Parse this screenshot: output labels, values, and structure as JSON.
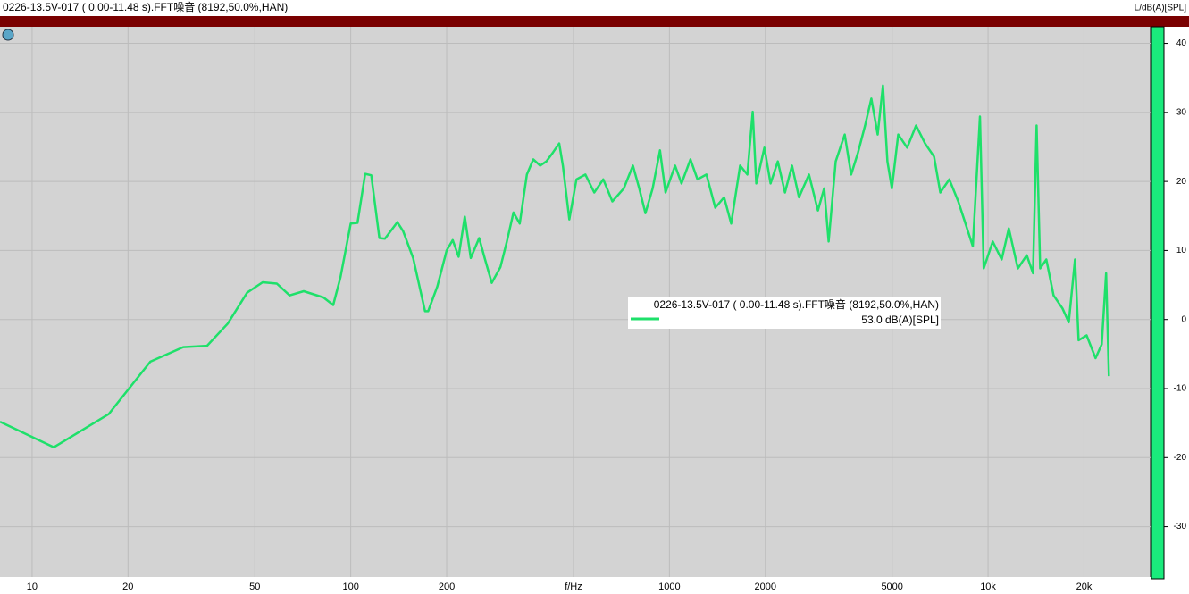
{
  "chart_data": {
    "type": "line",
    "title": "0226-13.5V-017 ( 0.00-11.48 s).FFT噪音 (8192,50.0%,HAN)",
    "y_label": "L/dB(A)[SPL]",
    "legend_value": "53.0 dB(A)[SPL]",
    "x_log": true,
    "grid": true,
    "xlim": [
      7.93,
      32360
    ],
    "ylim": [
      -37.3,
      42.4
    ],
    "xticks": [
      10,
      20,
      50,
      100,
      200,
      {
        "value": 500,
        "label": "f/Hz"
      },
      1000,
      2000,
      5000,
      {
        "value": 10000,
        "label": "10k"
      },
      {
        "value": 20000,
        "label": "20k"
      }
    ],
    "yticks": [
      -30,
      -20,
      -10,
      0,
      10,
      20,
      30,
      40
    ],
    "x": [
      7.93,
      11.7,
      17.4,
      23.5,
      29.8,
      35.4,
      41.1,
      47.3,
      52.9,
      58.6,
      64.3,
      71.2,
      82.1,
      88.1,
      92.8,
      100,
      105,
      111,
      116,
      123,
      128,
      140,
      146,
      157,
      171,
      175,
      187,
      200,
      209,
      218,
      228,
      238,
      253,
      264,
      277,
      295,
      309,
      324,
      339,
      357,
      374,
      393,
      411,
      431,
      451,
      463,
      485,
      511,
      545,
      581,
      620,
      662,
      719,
      768,
      804,
      841,
      886,
      934,
      972,
      1042,
      1091,
      1164,
      1225,
      1307,
      1393,
      1485,
      1563,
      1667,
      1756,
      1825,
      1873,
      1986,
      2077,
      2189,
      2304,
      2425,
      2551,
      2741,
      2924,
      3060,
      3160,
      3326,
      3549,
      3717,
      3908,
      4112,
      4302,
      4503,
      4678,
      4831,
      4991,
      5223,
      5572,
      5943,
      6342,
      6768,
      7082,
      7557,
      8063,
      8497,
      8955,
      9434,
      9692,
      10340,
      11030,
      11620,
      12400,
      13230,
      13840,
      14200,
      14570,
      15240,
      16050,
      17120,
      17910,
      18740,
      19230,
      20380,
      21740,
      22730,
      23460,
      23940
    ],
    "series": [
      {
        "name": "0226-13.5V-017 ( 0.00-11.48 s).FFT噪音 (8192,50.0%,HAN)",
        "color": "#1ee06a",
        "values": [
          -14.8,
          -18.5,
          -13.7,
          -6.1,
          -4.0,
          -3.8,
          -0.6,
          3.9,
          5.4,
          5.2,
          3.5,
          4.1,
          3.2,
          2.1,
          6.1,
          13.9,
          14.0,
          21.1,
          20.9,
          11.8,
          11.7,
          14.1,
          12.8,
          8.9,
          1.2,
          1.2,
          4.8,
          10.0,
          11.5,
          9.1,
          14.9,
          8.9,
          11.8,
          8.7,
          5.3,
          7.6,
          11.3,
          15.5,
          13.9,
          21.0,
          23.2,
          22.3,
          22.9,
          24.2,
          25.5,
          22.3,
          14.5,
          20.3,
          21.0,
          18.4,
          20.3,
          17.1,
          19.0,
          22.3,
          19.0,
          15.4,
          19.0,
          24.5,
          18.4,
          22.3,
          19.7,
          23.2,
          20.3,
          21.0,
          16.2,
          17.7,
          13.9,
          22.3,
          21.0,
          30.1,
          19.7,
          24.9,
          19.7,
          22.9,
          18.4,
          22.3,
          17.7,
          21.0,
          15.8,
          19.0,
          11.3,
          22.9,
          26.8,
          21.0,
          24.2,
          28.1,
          32.0,
          26.8,
          33.9,
          22.9,
          19.0,
          26.8,
          24.9,
          28.1,
          25.5,
          23.6,
          18.4,
          20.3,
          17.1,
          13.9,
          10.6,
          29.4,
          7.4,
          11.3,
          8.7,
          13.2,
          7.4,
          9.3,
          6.7,
          28.1,
          7.4,
          8.7,
          3.5,
          1.6,
          -0.4,
          8.7,
          -3.0,
          -2.3,
          -5.6,
          -3.6,
          6.7,
          -8.2
        ]
      }
    ]
  }
}
